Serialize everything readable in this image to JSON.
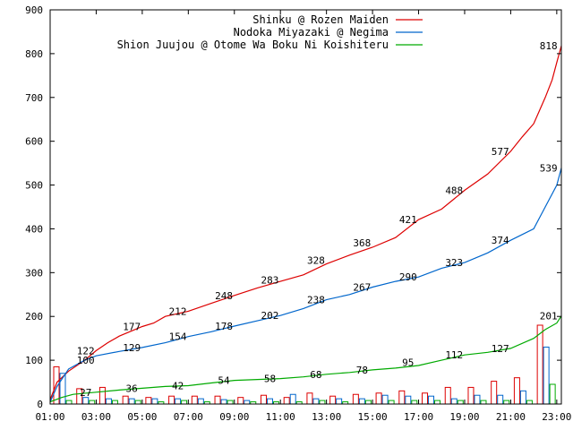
{
  "chart_data": {
    "type": "line",
    "title": "",
    "xlabel": "",
    "ylabel": "",
    "ylim": [
      0,
      900
    ],
    "xlim": [
      1,
      23.2
    ],
    "grid": false,
    "legend_position": "top-right",
    "y_ticks": [
      0,
      100,
      200,
      300,
      400,
      500,
      600,
      700,
      800,
      900
    ],
    "x_ticks": [
      {
        "x": 1,
        "label": "01:00"
      },
      {
        "x": 3,
        "label": "03:00"
      },
      {
        "x": 5,
        "label": "05:00"
      },
      {
        "x": 7,
        "label": "07:00"
      },
      {
        "x": 9,
        "label": "09:00"
      },
      {
        "x": 11,
        "label": "11:00"
      },
      {
        "x": 13,
        "label": "13:00"
      },
      {
        "x": 15,
        "label": "15:00"
      },
      {
        "x": 17,
        "label": "17:00"
      },
      {
        "x": 19,
        "label": "19:00"
      },
      {
        "x": 21,
        "label": "21:00"
      },
      {
        "x": 23,
        "label": "23:00"
      }
    ],
    "series": [
      {
        "name": "Shinku @ Rozen Maiden",
        "color": "#dd0000",
        "x": [
          1,
          1.3,
          1.8,
          2.5,
          3,
          3.5,
          4,
          5,
          5.5,
          6,
          7,
          8,
          9,
          10,
          11,
          12,
          13,
          14,
          15,
          16,
          17,
          18,
          19,
          20,
          21,
          21.5,
          22,
          22.5,
          22.8,
          23,
          23.2
        ],
        "values": [
          10,
          50,
          75,
          100,
          122,
          140,
          155,
          177,
          185,
          200,
          212,
          230,
          248,
          265,
          280,
          295,
          320,
          340,
          358,
          380,
          421,
          445,
          488,
          525,
          577,
          610,
          640,
          700,
          740,
          780,
          818
        ],
        "labels": [
          {
            "x": 2,
            "y": 122,
            "text": "122"
          },
          {
            "x": 4,
            "y": 177,
            "text": "177"
          },
          {
            "x": 6,
            "y": 212,
            "text": "212"
          },
          {
            "x": 8,
            "y": 248,
            "text": "248"
          },
          {
            "x": 10,
            "y": 283,
            "text": "283"
          },
          {
            "x": 12,
            "y": 328,
            "text": "328"
          },
          {
            "x": 14,
            "y": 368,
            "text": "368"
          },
          {
            "x": 16,
            "y": 421,
            "text": "421"
          },
          {
            "x": 18,
            "y": 488,
            "text": "488"
          },
          {
            "x": 20,
            "y": 577,
            "text": "577"
          },
          {
            "x": 22.1,
            "y": 818,
            "text": "818"
          }
        ]
      },
      {
        "name": "Nodoka Miyazaki @ Negima",
        "color": "#0066cc",
        "x": [
          1,
          1.3,
          1.8,
          2.5,
          3,
          4,
          5,
          6,
          7,
          8,
          9,
          10,
          11,
          12,
          13,
          14,
          15,
          16,
          17,
          18,
          19,
          20,
          21,
          22,
          22.5,
          23,
          23.2
        ],
        "values": [
          5,
          40,
          80,
          100,
          110,
          120,
          129,
          140,
          154,
          165,
          178,
          190,
          202,
          218,
          238,
          250,
          267,
          280,
          290,
          310,
          323,
          345,
          374,
          400,
          450,
          500,
          539
        ],
        "labels": [
          {
            "x": 2,
            "y": 100,
            "text": "100"
          },
          {
            "x": 4,
            "y": 129,
            "text": "129"
          },
          {
            "x": 6,
            "y": 154,
            "text": "154"
          },
          {
            "x": 8,
            "y": 178,
            "text": "178"
          },
          {
            "x": 10,
            "y": 202,
            "text": "202"
          },
          {
            "x": 12,
            "y": 238,
            "text": "238"
          },
          {
            "x": 14,
            "y": 267,
            "text": "267"
          },
          {
            "x": 16,
            "y": 290,
            "text": "290"
          },
          {
            "x": 18,
            "y": 323,
            "text": "323"
          },
          {
            "x": 20,
            "y": 374,
            "text": "374"
          },
          {
            "x": 22.1,
            "y": 539,
            "text": "539"
          }
        ]
      },
      {
        "name": "Shion Juujou @ Otome Wa Boku Ni Koishiteru",
        "color": "#00aa00",
        "x": [
          1,
          1.5,
          2,
          3,
          4,
          5,
          6,
          7,
          8,
          9,
          10,
          11,
          12,
          13,
          14,
          15,
          16,
          17,
          18,
          19,
          20,
          21,
          22,
          22.5,
          23,
          23.2
        ],
        "values": [
          5,
          15,
          22,
          27,
          32,
          36,
          40,
          42,
          48,
          54,
          56,
          58,
          62,
          68,
          72,
          78,
          82,
          88,
          100,
          112,
          118,
          127,
          150,
          170,
          185,
          201
        ],
        "labels": [
          {
            "x": 2,
            "y": 27,
            "text": "27"
          },
          {
            "x": 4,
            "y": 36,
            "text": "36"
          },
          {
            "x": 6,
            "y": 42,
            "text": "42"
          },
          {
            "x": 8,
            "y": 54,
            "text": "54"
          },
          {
            "x": 10,
            "y": 58,
            "text": "58"
          },
          {
            "x": 12,
            "y": 68,
            "text": "68"
          },
          {
            "x": 14,
            "y": 78,
            "text": "78"
          },
          {
            "x": 16,
            "y": 95,
            "text": "95"
          },
          {
            "x": 18,
            "y": 112,
            "text": "112"
          },
          {
            "x": 20,
            "y": 127,
            "text": "127"
          },
          {
            "x": 22.1,
            "y": 201,
            "text": "201"
          }
        ]
      }
    ],
    "bars": {
      "hours": [
        1,
        2,
        3,
        4,
        5,
        6,
        7,
        8,
        9,
        10,
        11,
        12,
        13,
        14,
        15,
        16,
        17,
        18,
        19,
        20,
        21,
        22,
        23
      ],
      "red": [
        85,
        35,
        38,
        18,
        15,
        18,
        18,
        18,
        15,
        20,
        15,
        25,
        18,
        22,
        25,
        30,
        25,
        38,
        38,
        52,
        60,
        180,
        0
      ],
      "blue": [
        70,
        15,
        12,
        12,
        12,
        12,
        12,
        10,
        8,
        12,
        22,
        12,
        12,
        12,
        20,
        18,
        18,
        12,
        20,
        20,
        30,
        130,
        0
      ],
      "green": [
        8,
        8,
        8,
        8,
        5,
        8,
        5,
        8,
        5,
        5,
        5,
        8,
        5,
        8,
        8,
        8,
        8,
        8,
        8,
        8,
        8,
        45,
        0
      ]
    }
  }
}
